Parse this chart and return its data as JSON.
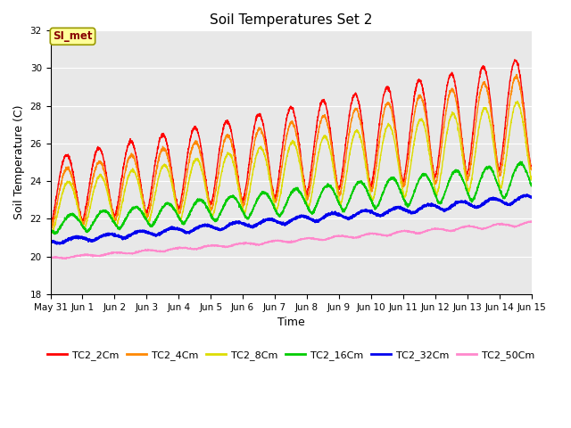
{
  "title": "Soil Temperatures Set 2",
  "xlabel": "Time",
  "ylabel": "Soil Temperature (C)",
  "ylim": [
    18,
    32
  ],
  "yticks": [
    18,
    20,
    22,
    24,
    26,
    28,
    30,
    32
  ],
  "background_color": "#ffffff",
  "plot_bg_color": "#e8e8e8",
  "series_colors": {
    "TC2_2Cm": "#ff0000",
    "TC2_4Cm": "#ff8800",
    "TC2_8Cm": "#dddd00",
    "TC2_16Cm": "#00cc00",
    "TC2_32Cm": "#0000ee",
    "TC2_50Cm": "#ff88cc"
  },
  "annotation_text": "SI_met",
  "annotation_bg": "#ffff99",
  "annotation_border": "#999900",
  "annotation_text_color": "#880000",
  "xtick_labels": [
    "May 31",
    "Jun 1",
    "Jun 2",
    "Jun 3",
    "Jun 4",
    "Jun 5",
    "Jun 6",
    "Jun 7",
    "Jun 8",
    "Jun 9",
    "Jun 10",
    "Jun 11",
    "Jun 12",
    "Jun 13",
    "Jun 14",
    "Jun 15"
  ],
  "n_days": 15.0,
  "n_pts": 2880,
  "grid_color": "#ffffff",
  "grid_lw": 0.8
}
